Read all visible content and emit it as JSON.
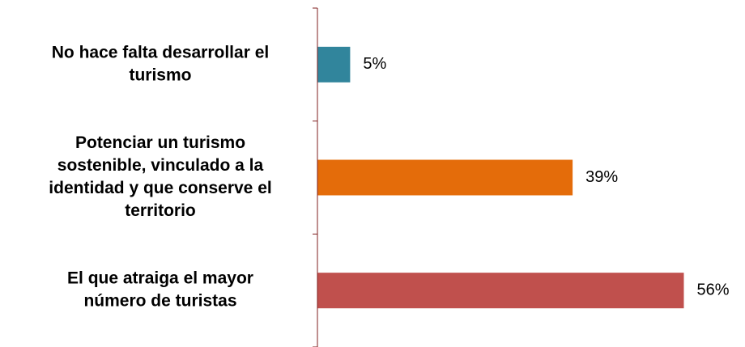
{
  "chart_data": {
    "type": "barh",
    "categories": [
      [
        "No hace falta desarrollar el",
        "turismo"
      ],
      [
        "Potenciar un turismo",
        "sostenible, vinculado a la",
        "identidad y que conserve el",
        "territorio"
      ],
      [
        "El que atraiga el mayor",
        "número de turistas"
      ]
    ],
    "values": [
      5,
      39,
      56
    ],
    "value_labels": [
      "5%",
      "39%",
      "56%"
    ],
    "colors": [
      "#31859c",
      "#e46c0a",
      "#c0504d"
    ]
  }
}
